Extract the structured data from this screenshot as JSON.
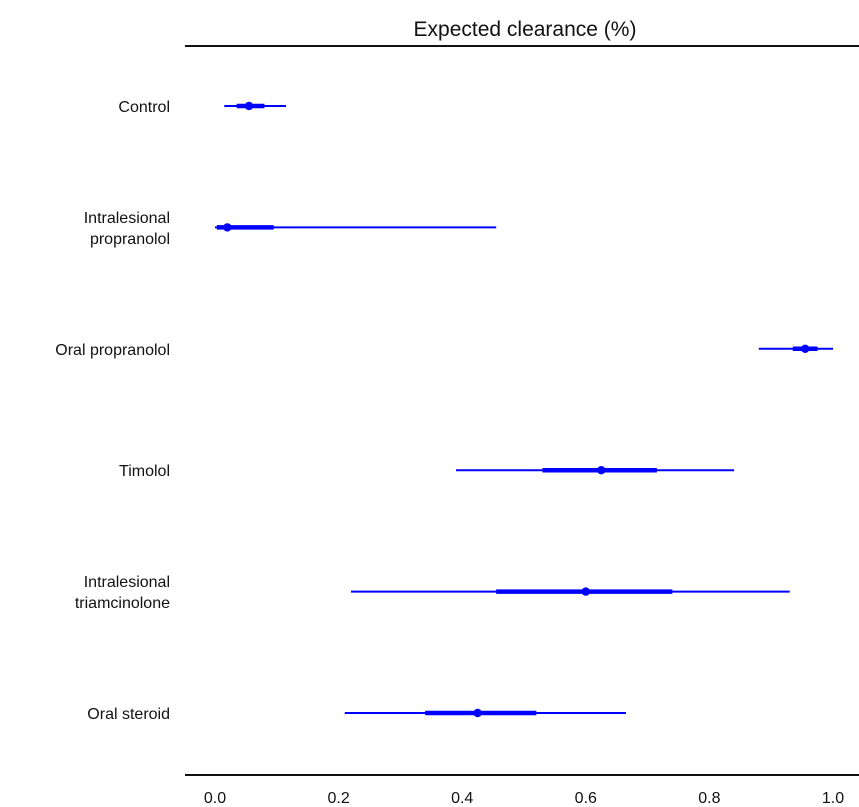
{
  "chart_data": {
    "type": "forest",
    "title": "Expected clearance (%)",
    "xlabel": "",
    "ylabel": "",
    "xlim": [
      0.0,
      1.0
    ],
    "x_ticks": [
      "0.0",
      "0.2",
      "0.4",
      "0.6",
      "0.8",
      "1.0"
    ],
    "x_tick_values": [
      0.0,
      0.2,
      0.4,
      0.6,
      0.8,
      1.0
    ],
    "grid": false,
    "legend": "none",
    "series_color": "#0000ff",
    "categories": [
      {
        "label_lines": [
          "Control"
        ],
        "estimate": 0.055,
        "inner": [
          0.035,
          0.08
        ],
        "outer": [
          0.015,
          0.115
        ]
      },
      {
        "label_lines": [
          "Intralesional",
          "propranolol"
        ],
        "estimate": 0.02,
        "inner": [
          0.003,
          0.095
        ],
        "outer": [
          0.0,
          0.455
        ]
      },
      {
        "label_lines": [
          "Oral propranolol"
        ],
        "estimate": 0.955,
        "inner": [
          0.935,
          0.975
        ],
        "outer": [
          0.88,
          1.0
        ]
      },
      {
        "label_lines": [
          "Timolol"
        ],
        "estimate": 0.625,
        "inner": [
          0.53,
          0.715
        ],
        "outer": [
          0.39,
          0.84
        ]
      },
      {
        "label_lines": [
          "Intralesional",
          "triamcinolone"
        ],
        "estimate": 0.6,
        "inner": [
          0.455,
          0.74
        ],
        "outer": [
          0.22,
          0.93
        ]
      },
      {
        "label_lines": [
          "Oral steroid"
        ],
        "estimate": 0.425,
        "inner": [
          0.34,
          0.52
        ],
        "outer": [
          0.21,
          0.665
        ]
      }
    ]
  }
}
